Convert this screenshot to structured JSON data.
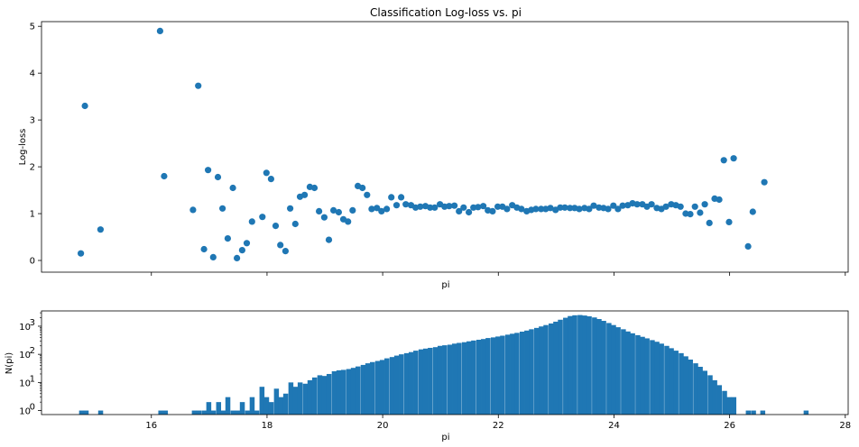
{
  "chart_data": [
    {
      "type": "scatter",
      "title": "Classification Log-loss vs. pi",
      "xlabel": "pi",
      "ylabel": "Log-loss",
      "xlim": [
        14.1,
        28.05
      ],
      "ylim": [
        -0.25,
        5.1
      ],
      "yticks": [
        0,
        1,
        2,
        3,
        4,
        5
      ],
      "grid": false,
      "color": "#1f77b4",
      "x": [
        14.78,
        14.85,
        15.12,
        16.15,
        16.22,
        16.72,
        16.81,
        16.91,
        16.98,
        17.07,
        17.15,
        17.23,
        17.32,
        17.41,
        17.48,
        17.57,
        17.65,
        17.74,
        17.92,
        17.99,
        18.07,
        18.15,
        18.23,
        18.32,
        18.4,
        18.49,
        18.57,
        18.65,
        18.74,
        18.82,
        18.9,
        18.99,
        19.07,
        19.15,
        19.24,
        19.32,
        19.4,
        19.48,
        19.57,
        19.65,
        19.73,
        19.81,
        19.9,
        19.98,
        20.07,
        20.15,
        20.24,
        20.32,
        20.4,
        20.49,
        20.57,
        20.65,
        20.74,
        20.82,
        20.9,
        20.99,
        21.07,
        21.15,
        21.24,
        21.32,
        21.4,
        21.49,
        21.57,
        21.65,
        21.74,
        21.82,
        21.9,
        21.99,
        22.07,
        22.15,
        22.24,
        22.32,
        22.4,
        22.49,
        22.57,
        22.65,
        22.74,
        22.82,
        22.9,
        22.99,
        23.07,
        23.15,
        23.24,
        23.32,
        23.4,
        23.49,
        23.57,
        23.65,
        23.74,
        23.82,
        23.9,
        23.99,
        24.07,
        24.15,
        24.24,
        24.32,
        24.4,
        24.49,
        24.57,
        24.65,
        24.74,
        24.82,
        24.9,
        24.99,
        25.07,
        25.15,
        25.24,
        25.32,
        25.4,
        25.49,
        25.57,
        25.65,
        25.74,
        25.82,
        25.9,
        25.99,
        26.07,
        26.32,
        26.4,
        26.6
      ],
      "y": [
        0.15,
        3.3,
        0.66,
        4.9,
        1.8,
        1.08,
        3.73,
        0.24,
        1.93,
        0.07,
        1.78,
        1.11,
        0.47,
        1.55,
        0.05,
        0.22,
        0.37,
        0.83,
        0.93,
        1.87,
        1.74,
        0.74,
        0.33,
        0.2,
        1.11,
        0.78,
        1.36,
        1.4,
        1.57,
        1.55,
        1.05,
        0.92,
        0.44,
        1.07,
        1.03,
        0.88,
        0.83,
        1.07,
        1.59,
        1.55,
        1.4,
        1.1,
        1.12,
        1.05,
        1.1,
        1.35,
        1.18,
        1.35,
        1.2,
        1.18,
        1.13,
        1.15,
        1.16,
        1.13,
        1.13,
        1.2,
        1.15,
        1.16,
        1.17,
        1.05,
        1.13,
        1.03,
        1.13,
        1.14,
        1.16,
        1.07,
        1.05,
        1.15,
        1.15,
        1.1,
        1.18,
        1.13,
        1.1,
        1.05,
        1.08,
        1.1,
        1.1,
        1.1,
        1.12,
        1.08,
        1.13,
        1.13,
        1.12,
        1.12,
        1.1,
        1.12,
        1.1,
        1.17,
        1.13,
        1.12,
        1.1,
        1.17,
        1.1,
        1.17,
        1.18,
        1.22,
        1.2,
        1.2,
        1.15,
        1.2,
        1.12,
        1.1,
        1.15,
        1.2,
        1.18,
        1.15,
        1.0,
        0.99,
        1.15,
        1.02,
        1.2,
        0.8,
        1.32,
        1.3,
        2.14,
        0.82,
        2.18,
        0.3,
        1.04,
        1.67
      ]
    },
    {
      "type": "bar",
      "title": "",
      "xlabel": "pi",
      "ylabel": "N(pi)",
      "xlim": [
        14.1,
        28.05
      ],
      "xticks": [
        16,
        18,
        20,
        22,
        24,
        26,
        28
      ],
      "yscale": "log",
      "ylim": [
        0.72,
        3500
      ],
      "yticks": [
        1,
        10,
        100,
        1000
      ],
      "ytick_labels": [
        "10",
        "10",
        "10",
        "10"
      ],
      "ytick_exponents": [
        "0",
        "1",
        "2",
        "3"
      ],
      "bin_width": 0.0833,
      "color": "#1f77b4",
      "bins": [
        [
          14.75,
          1
        ],
        [
          14.83,
          1
        ],
        [
          15.08,
          1
        ],
        [
          16.12,
          1
        ],
        [
          16.2,
          1
        ],
        [
          16.7,
          1
        ],
        [
          16.78,
          1
        ],
        [
          16.87,
          1
        ],
        [
          16.95,
          2
        ],
        [
          17.03,
          1
        ],
        [
          17.12,
          2
        ],
        [
          17.2,
          1
        ],
        [
          17.28,
          3
        ],
        [
          17.37,
          1
        ],
        [
          17.45,
          1
        ],
        [
          17.53,
          2
        ],
        [
          17.62,
          1
        ],
        [
          17.7,
          3
        ],
        [
          17.78,
          1
        ],
        [
          17.87,
          7
        ],
        [
          17.95,
          3
        ],
        [
          18.03,
          2
        ],
        [
          18.12,
          6
        ],
        [
          18.2,
          3
        ],
        [
          18.28,
          4
        ],
        [
          18.37,
          10
        ],
        [
          18.45,
          7
        ],
        [
          18.53,
          10
        ],
        [
          18.62,
          9
        ],
        [
          18.7,
          12
        ],
        [
          18.78,
          15
        ],
        [
          18.87,
          18
        ],
        [
          18.95,
          17
        ],
        [
          19.03,
          20
        ],
        [
          19.12,
          25
        ],
        [
          19.2,
          27
        ],
        [
          19.28,
          28
        ],
        [
          19.37,
          30
        ],
        [
          19.45,
          33
        ],
        [
          19.53,
          37
        ],
        [
          19.62,
          42
        ],
        [
          19.7,
          48
        ],
        [
          19.78,
          53
        ],
        [
          19.87,
          58
        ],
        [
          19.95,
          63
        ],
        [
          20.03,
          72
        ],
        [
          20.12,
          80
        ],
        [
          20.2,
          90
        ],
        [
          20.28,
          100
        ],
        [
          20.37,
          110
        ],
        [
          20.45,
          120
        ],
        [
          20.53,
          135
        ],
        [
          20.62,
          150
        ],
        [
          20.7,
          160
        ],
        [
          20.78,
          170
        ],
        [
          20.87,
          180
        ],
        [
          20.95,
          200
        ],
        [
          21.03,
          210
        ],
        [
          21.12,
          220
        ],
        [
          21.2,
          240
        ],
        [
          21.28,
          255
        ],
        [
          21.37,
          270
        ],
        [
          21.45,
          290
        ],
        [
          21.53,
          310
        ],
        [
          21.62,
          330
        ],
        [
          21.7,
          350
        ],
        [
          21.78,
          380
        ],
        [
          21.87,
          400
        ],
        [
          21.95,
          430
        ],
        [
          22.03,
          460
        ],
        [
          22.12,
          500
        ],
        [
          22.2,
          540
        ],
        [
          22.28,
          580
        ],
        [
          22.37,
          640
        ],
        [
          22.45,
          700
        ],
        [
          22.53,
          780
        ],
        [
          22.62,
          870
        ],
        [
          22.7,
          980
        ],
        [
          22.78,
          1100
        ],
        [
          22.87,
          1250
        ],
        [
          22.95,
          1450
        ],
        [
          23.03,
          1700
        ],
        [
          23.12,
          2000
        ],
        [
          23.2,
          2300
        ],
        [
          23.28,
          2450
        ],
        [
          23.37,
          2500
        ],
        [
          23.45,
          2400
        ],
        [
          23.53,
          2250
        ],
        [
          23.62,
          2050
        ],
        [
          23.7,
          1800
        ],
        [
          23.78,
          1550
        ],
        [
          23.87,
          1300
        ],
        [
          23.95,
          1100
        ],
        [
          24.03,
          920
        ],
        [
          24.12,
          780
        ],
        [
          24.2,
          650
        ],
        [
          24.28,
          560
        ],
        [
          24.37,
          480
        ],
        [
          24.45,
          420
        ],
        [
          24.53,
          370
        ],
        [
          24.62,
          320
        ],
        [
          24.7,
          280
        ],
        [
          24.78,
          240
        ],
        [
          24.87,
          200
        ],
        [
          24.95,
          165
        ],
        [
          25.03,
          135
        ],
        [
          25.12,
          110
        ],
        [
          25.2,
          85
        ],
        [
          25.28,
          65
        ],
        [
          25.37,
          48
        ],
        [
          25.45,
          36
        ],
        [
          25.53,
          26
        ],
        [
          25.62,
          18
        ],
        [
          25.7,
          12
        ],
        [
          25.78,
          8
        ],
        [
          25.87,
          5
        ],
        [
          25.95,
          3
        ],
        [
          26.03,
          3
        ],
        [
          26.28,
          1
        ],
        [
          26.37,
          1
        ],
        [
          26.53,
          1
        ],
        [
          27.28,
          1
        ]
      ]
    }
  ]
}
